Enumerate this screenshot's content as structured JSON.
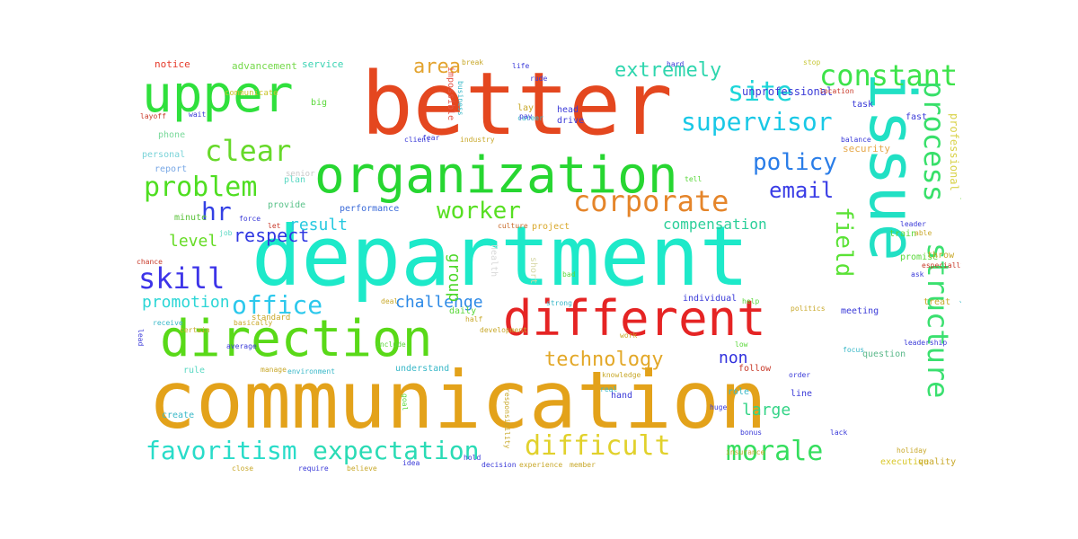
{
  "cloud": {
    "words": [
      {
        "text": "communication",
        "color": "#e3a21a"
      },
      {
        "text": "department",
        "color": "#1de9c9"
      },
      {
        "text": "better",
        "color": "#e4471f"
      },
      {
        "text": "issue",
        "color": "#21e0c4"
      },
      {
        "text": "organization",
        "color": "#27d631"
      },
      {
        "text": "upper",
        "color": "#2fe03c"
      },
      {
        "text": "direction",
        "color": "#59d918"
      },
      {
        "text": "different",
        "color": "#e52424"
      },
      {
        "text": "constant",
        "color": "#3de34a"
      },
      {
        "text": "site",
        "color": "#1ed6d9"
      },
      {
        "text": "supervisor",
        "color": "#19c8e6"
      },
      {
        "text": "process",
        "color": "#38e06a"
      },
      {
        "text": "clear",
        "color": "#67d92a"
      },
      {
        "text": "policy",
        "color": "#2a7de8"
      },
      {
        "text": "corporate",
        "color": "#e5852a"
      },
      {
        "text": "problem",
        "color": "#4fde21"
      },
      {
        "text": "email",
        "color": "#3a3de6"
      },
      {
        "text": "hr",
        "color": "#3340e4"
      },
      {
        "text": "worker",
        "color": "#57df22"
      },
      {
        "text": "structure",
        "color": "#3ae06f"
      },
      {
        "text": "skill",
        "color": "#3d34e8"
      },
      {
        "text": "office",
        "color": "#2cc8ec"
      },
      {
        "text": "field",
        "color": "#5ae235"
      },
      {
        "text": "favoritism",
        "color": "#29dcc9"
      },
      {
        "text": "expectation",
        "color": "#2adbb5"
      },
      {
        "text": "difficult",
        "color": "#e1d12c"
      },
      {
        "text": "morale",
        "color": "#35de5e"
      },
      {
        "text": "technology",
        "color": "#e3a828"
      },
      {
        "text": "respect",
        "color": "#3038e2"
      },
      {
        "text": "extremely",
        "color": "#2fd6ae"
      },
      {
        "text": "area",
        "color": "#e3a32e"
      },
      {
        "text": "result",
        "color": "#27c9e0"
      },
      {
        "text": "level",
        "color": "#66db25"
      },
      {
        "text": "promotion",
        "color": "#2cd6d6"
      },
      {
        "text": "challenge",
        "color": "#2c89e6"
      },
      {
        "text": "compensation",
        "color": "#2ccf9a"
      },
      {
        "text": "group",
        "color": "#4ed82b"
      },
      {
        "text": "non",
        "color": "#3030dd"
      },
      {
        "text": "large",
        "color": "#34d487"
      },
      {
        "text": "increase",
        "color": "#2ad6b6"
      },
      {
        "text": "complete",
        "color": "#5ad52a"
      },
      {
        "text": "notice",
        "color": "#e53a2a"
      },
      {
        "text": "advancement",
        "color": "#75d94a"
      },
      {
        "text": "service",
        "color": "#3ad3b3"
      },
      {
        "text": "security",
        "color": "#e6a84a"
      },
      {
        "text": "unprofessional",
        "color": "#3a3ad8"
      },
      {
        "text": "professional",
        "color": "#d9d24a"
      },
      {
        "text": "impossible",
        "color": "#e6584a"
      },
      {
        "text": "communicate",
        "color": "#c8c42a"
      },
      {
        "text": "phone",
        "color": "#79d99a"
      },
      {
        "text": "personal",
        "color": "#79d3d8"
      },
      {
        "text": "report",
        "color": "#79a8e6"
      },
      {
        "text": "plan",
        "color": "#5ad8c3"
      },
      {
        "text": "provide",
        "color": "#5ac28a"
      },
      {
        "text": "minute",
        "color": "#5ac23a"
      },
      {
        "text": "performance",
        "color": "#3a6ad8"
      },
      {
        "text": "senior",
        "color": "#c8c8c8"
      },
      {
        "text": "project",
        "color": "#d9a82a"
      },
      {
        "text": "culture",
        "color": "#c86a2a"
      },
      {
        "text": "individual",
        "color": "#3a3ad8"
      },
      {
        "text": "meeting",
        "color": "#3a3ad8"
      },
      {
        "text": "question",
        "color": "#5ab88a"
      },
      {
        "text": "understand",
        "color": "#3ab8c8"
      },
      {
        "text": "standard",
        "color": "#c8a82a"
      },
      {
        "text": "promise",
        "color": "#5ad83a"
      },
      {
        "text": "train",
        "color": "#5ad83a"
      },
      {
        "text": "throw",
        "color": "#c8a82a"
      },
      {
        "text": "treat",
        "color": "#c8a82a"
      },
      {
        "text": "executive",
        "color": "#d9c82a"
      },
      {
        "text": "quality",
        "color": "#c8a82a"
      },
      {
        "text": "create",
        "color": "#3ab8c8"
      },
      {
        "text": "hand",
        "color": "#3a3ad8"
      },
      {
        "text": "role",
        "color": "#3ab8c8"
      },
      {
        "text": "line",
        "color": "#3a3ad8"
      },
      {
        "text": "follow",
        "color": "#c83a2a"
      },
      {
        "text": "rule",
        "color": "#5ad8c3"
      },
      {
        "text": "daily",
        "color": "#5ad83a"
      },
      {
        "text": "health",
        "color": "#d8d8d8"
      },
      {
        "text": "short",
        "color": "#d8d8a8"
      },
      {
        "text": "leadership",
        "color": "#3a3ad8"
      },
      {
        "text": "task",
        "color": "#3a3ad8"
      },
      {
        "text": "fast",
        "color": "#3a3ad8"
      },
      {
        "text": "balance",
        "color": "#3a3ad8"
      },
      {
        "text": "stop",
        "color": "#c8c83a"
      },
      {
        "text": "life",
        "color": "#3a3ad8"
      },
      {
        "text": "break",
        "color": "#c8a82a"
      },
      {
        "text": "hard",
        "color": "#3a3ad8"
      },
      {
        "text": "rude",
        "color": "#3a3ad8"
      },
      {
        "text": "head",
        "color": "#3a3ad8"
      },
      {
        "text": "drive",
        "color": "#3a3ad8"
      },
      {
        "text": "career",
        "color": "#3ab8c8"
      },
      {
        "text": "lay",
        "color": "#c8a82a"
      },
      {
        "text": "big",
        "color": "#5ad83a"
      },
      {
        "text": "wait",
        "color": "#3a3ad8"
      },
      {
        "text": "layoff",
        "color": "#c83a2a"
      },
      {
        "text": "lead",
        "color": "#3a3ad8"
      },
      {
        "text": "certain",
        "color": "#c8a82a"
      },
      {
        "text": "job",
        "color": "#5ad8c3"
      },
      {
        "text": "force",
        "color": "#3a3ad8"
      },
      {
        "text": "let",
        "color": "#c83a2a"
      },
      {
        "text": "ask",
        "color": "#3a3ad8"
      },
      {
        "text": "deal",
        "color": "#c8a82a"
      },
      {
        "text": "especially",
        "color": "#c83a2a"
      },
      {
        "text": "average",
        "color": "#3a3ad8"
      },
      {
        "text": "include",
        "color": "#5ad83a"
      },
      {
        "text": "politics",
        "color": "#c8a82a"
      },
      {
        "text": "help",
        "color": "#5ad83a"
      },
      {
        "text": "goal",
        "color": "#5ad83a"
      },
      {
        "text": "idea",
        "color": "#3a3ad8"
      },
      {
        "text": "decision",
        "color": "#3a3ad8"
      },
      {
        "text": "experience",
        "color": "#c8a82a"
      },
      {
        "text": "member",
        "color": "#c8a82a"
      },
      {
        "text": "environment",
        "color": "#3ab8c8"
      },
      {
        "text": "manage",
        "color": "#c8a82a"
      },
      {
        "text": "basically",
        "color": "#c8a82a"
      },
      {
        "text": "receive",
        "color": "#3ab8c8"
      },
      {
        "text": "chance",
        "color": "#c83a2a"
      },
      {
        "text": "insurance",
        "color": "#c8a82a"
      },
      {
        "text": "holiday",
        "color": "#c8a82a"
      },
      {
        "text": "bonus",
        "color": "#3a3ad8"
      },
      {
        "text": "order",
        "color": "#3a3ad8"
      },
      {
        "text": "location",
        "color": "#c83a2a"
      },
      {
        "text": "industry",
        "color": "#c8a82a"
      },
      {
        "text": "client",
        "color": "#3a3ad8"
      },
      {
        "text": "business",
        "color": "#3ab8c8"
      },
      {
        "text": "pay",
        "color": "#3a3ad8"
      },
      {
        "text": "tell",
        "color": "#5ad83a"
      },
      {
        "text": "half",
        "color": "#c8a82a"
      },
      {
        "text": "strong",
        "color": "#3ab8c8"
      },
      {
        "text": "work",
        "color": "#c8a82a"
      },
      {
        "text": "huge",
        "color": "#3a3ad8"
      },
      {
        "text": "fear",
        "color": "#3a3ad8"
      },
      {
        "text": "low",
        "color": "#5ad83a"
      },
      {
        "text": "hold",
        "color": "#3a3ad8"
      },
      {
        "text": "real",
        "color": "#3ab8c8"
      },
      {
        "text": "knowledge",
        "color": "#c8a82a"
      },
      {
        "text": "responsibility",
        "color": "#c8a82a"
      },
      {
        "text": "development",
        "color": "#c8a82a"
      },
      {
        "text": "able",
        "color": "#c8a82a"
      },
      {
        "text": "family",
        "color": "#3ab8c8"
      },
      {
        "text": "bad",
        "color": "#5ad83a"
      },
      {
        "text": "lack",
        "color": "#3a3ad8"
      },
      {
        "text": "leader",
        "color": "#3a3ad8"
      },
      {
        "text": "require",
        "color": "#3a3ad8"
      },
      {
        "text": "believe",
        "color": "#c8a82a"
      },
      {
        "text": "close",
        "color": "#c8a82a"
      },
      {
        "text": "focus",
        "color": "#3ab8c8"
      }
    ]
  }
}
